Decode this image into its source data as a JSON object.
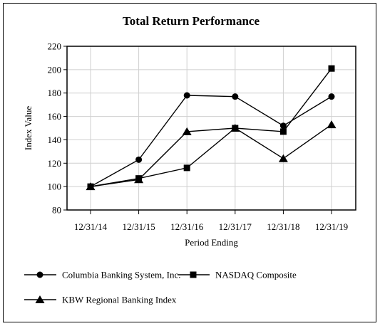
{
  "chart_data": {
    "type": "line",
    "title": "Total Return Performance",
    "xlabel": "Period Ending",
    "ylabel": "Index Value",
    "categories": [
      "12/31/14",
      "12/31/15",
      "12/31/16",
      "12/31/17",
      "12/31/18",
      "12/31/19"
    ],
    "ylim": [
      80,
      220
    ],
    "yticks": [
      80,
      100,
      120,
      140,
      160,
      180,
      200,
      220
    ],
    "grid": true,
    "legend_position": "bottom",
    "series": [
      {
        "name": "Columbia Banking System, Inc.",
        "marker": "circle",
        "color": "#000000",
        "values": [
          100,
          123,
          178,
          177,
          152,
          177
        ]
      },
      {
        "name": "NASDAQ Composite",
        "marker": "square",
        "color": "#000000",
        "values": [
          100,
          107,
          116,
          150,
          147,
          201
        ]
      },
      {
        "name": "KBW Regional Banking Index",
        "marker": "triangle",
        "color": "#000000",
        "values": [
          100,
          106,
          147,
          150,
          124,
          153
        ]
      }
    ]
  }
}
